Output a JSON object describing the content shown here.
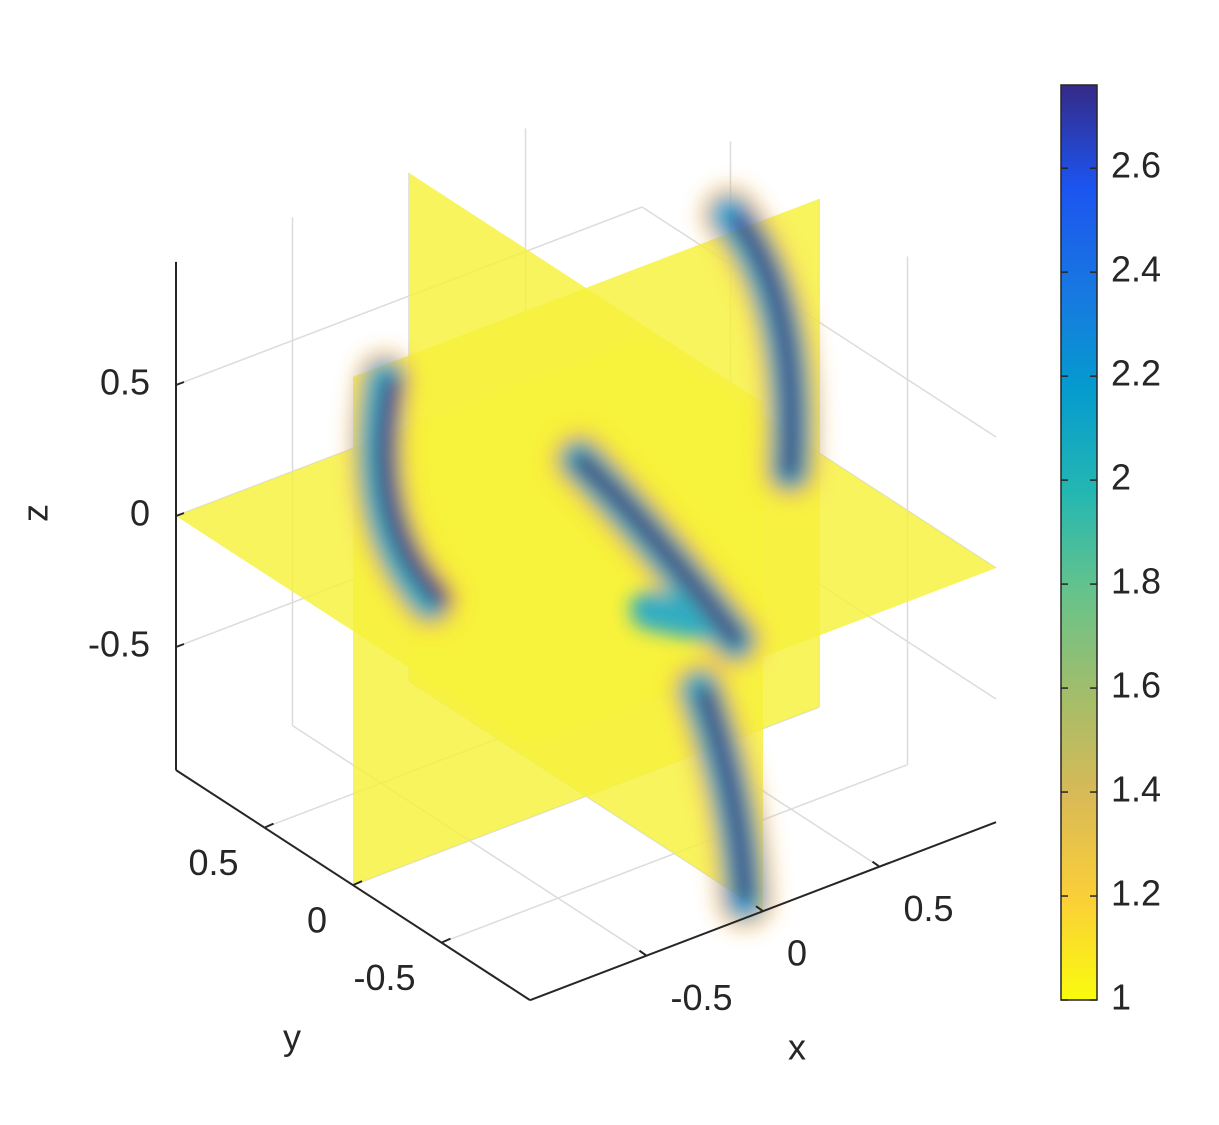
{
  "chart_data": {
    "type": "slice",
    "xlabel": "x",
    "ylabel": "y",
    "zlabel": "z",
    "xlim": [
      -1,
      1
    ],
    "ylim": [
      -1,
      1
    ],
    "zlim": [
      -0.97,
      0.97
    ],
    "xticks": [
      -0.5,
      0,
      0.5
    ],
    "yticks": [
      -0.5,
      0,
      0.5
    ],
    "zticks": [
      -0.5,
      0,
      0.5
    ],
    "grid": true,
    "slices": {
      "x": [
        0
      ],
      "y": [
        0
      ],
      "z": [
        0
      ]
    },
    "slice_color": "#f7f23a",
    "colorbar": {
      "clim": [
        1,
        2.76
      ],
      "ticks": [
        1,
        1.2,
        1.4,
        1.6,
        1.8,
        2,
        2.2,
        2.4,
        2.6
      ],
      "colormap": [
        "#f9fb0e",
        "#fbcf38",
        "#d9ba56",
        "#a3bd6a",
        "#67c38b",
        "#23b7b2",
        "#059bce",
        "#1877e2",
        "#1c54f0",
        "#352a87"
      ]
    }
  }
}
